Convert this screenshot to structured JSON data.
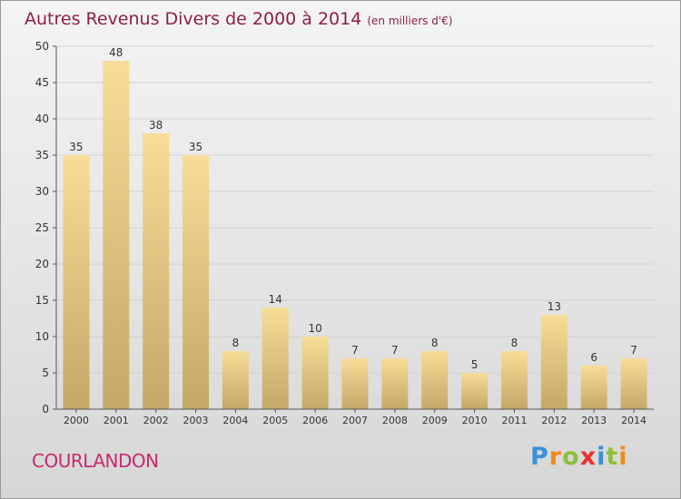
{
  "chart_data": {
    "type": "bar",
    "title": "Autres Revenus Divers de 2000 à 2014",
    "subtitle": "(en milliers d'€)",
    "categories": [
      "2000",
      "2001",
      "2002",
      "2003",
      "2004",
      "2005",
      "2006",
      "2007",
      "2008",
      "2009",
      "2010",
      "2011",
      "2012",
      "2013",
      "2014"
    ],
    "values": [
      35,
      48,
      38,
      35,
      8,
      14,
      10,
      7,
      7,
      8,
      5,
      8,
      13,
      6,
      7
    ],
    "ylim": [
      0,
      50
    ],
    "yticks": [
      0,
      5,
      10,
      15,
      20,
      25,
      30,
      35,
      40,
      45,
      50
    ],
    "grid": true,
    "bar_color_top": "#f7dd98",
    "bar_color_bottom": "#c4a866"
  },
  "place_name": "COURLANDON",
  "logo": {
    "text": "Proxiti",
    "colors": [
      "#3b8fd4",
      "#f08a1c",
      "#8dbf3a",
      "#e8342b",
      "#3b8fd4",
      "#8dbf3a",
      "#f08a1c"
    ]
  }
}
